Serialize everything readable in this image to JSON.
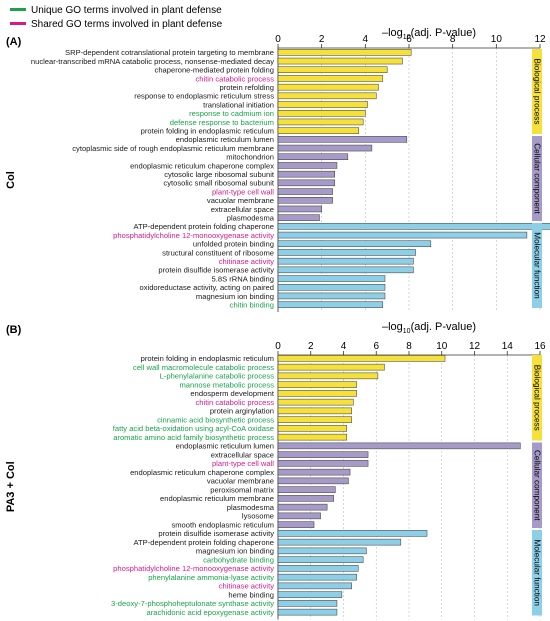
{
  "legend": {
    "items": [
      {
        "label": "Unique GO terms involved in plant defense",
        "color": "#1aa34a"
      },
      {
        "label": "Shared GO terms involved in plant defense",
        "color": "#d6198f"
      }
    ]
  },
  "colors": {
    "Biological process": "#f5e13a",
    "Cellular component": "#a69bc8",
    "Molecular function": "#8ecfe8",
    "unique": "#1aa34a",
    "shared": "#d6198f",
    "plain": "#1a1a1a"
  },
  "chart_data": [
    {
      "type": "bar",
      "orientation": "horizontal",
      "panel_label": "(A)",
      "group_label": "Col",
      "xlabel": "–log10(adj. P-value)",
      "xlim": [
        0,
        12
      ],
      "xticks": [
        0,
        2,
        4,
        6,
        8,
        10,
        12
      ],
      "grid": true,
      "categories": [
        {
          "section": "Biological process",
          "terms": [
            {
              "term": "SRP-dependent cotranslational protein targeting to membrane",
              "value": 6.1,
              "mark": "plain"
            },
            {
              "term": "nuclear-transcribed mRNA catabolic process, nonsense-mediated decay",
              "value": 5.7,
              "mark": "plain"
            },
            {
              "term": "chaperone-mediated protein folding",
              "value": 5.0,
              "mark": "plain"
            },
            {
              "term": "chitin catabolic process",
              "value": 4.8,
              "mark": "shared"
            },
            {
              "term": "protein refolding",
              "value": 4.6,
              "mark": "plain"
            },
            {
              "term": "response to endoplasmic reticulum stress",
              "value": 4.5,
              "mark": "plain"
            },
            {
              "term": "translational initiation",
              "value": 4.1,
              "mark": "plain"
            },
            {
              "term": "response to cadmium ion",
              "value": 4.0,
              "mark": "unique"
            },
            {
              "term": "defense response to bacterium",
              "value": 3.9,
              "mark": "unique"
            },
            {
              "term": "protein folding in endoplasmic reticulum",
              "value": 3.7,
              "mark": "plain"
            }
          ]
        },
        {
          "section": "Cellular component",
          "terms": [
            {
              "term": "endoplasmic reticulum lumen",
              "value": 5.9,
              "mark": "plain"
            },
            {
              "term": "cytoplasmic side of rough endoplasmic reticulum membrane",
              "value": 4.3,
              "mark": "plain"
            },
            {
              "term": "mitochondrion",
              "value": 3.2,
              "mark": "plain"
            },
            {
              "term": "endoplasmic reticulum chaperone complex",
              "value": 2.7,
              "mark": "plain"
            },
            {
              "term": "cytosolic large ribosomal subunit",
              "value": 2.6,
              "mark": "plain"
            },
            {
              "term": "cytosolic small ribosomal subunit",
              "value": 2.6,
              "mark": "plain"
            },
            {
              "term": "plant-type cell wall",
              "value": 2.5,
              "mark": "shared"
            },
            {
              "term": "vacuolar membrane",
              "value": 2.5,
              "mark": "plain"
            },
            {
              "term": "extracellular space",
              "value": 2.0,
              "mark": "plain"
            },
            {
              "term": "plasmodesma",
              "value": 1.9,
              "mark": "plain"
            }
          ]
        },
        {
          "section": "Molecular function",
          "terms": [
            {
              "term": "ATP-dependent protein folding chaperone",
              "value": 13.5,
              "mark": "plain"
            },
            {
              "term": "phosphatidylcholine 12-monooxygenase activity",
              "value": 11.4,
              "mark": "shared"
            },
            {
              "term": "unfolded protein binding",
              "value": 7.0,
              "mark": "plain"
            },
            {
              "term": "structural constituent of ribosome",
              "value": 6.3,
              "mark": "plain"
            },
            {
              "term": "chitinase activity",
              "value": 6.2,
              "mark": "shared"
            },
            {
              "term": "protein disulfide isomerase activity",
              "value": 6.2,
              "mark": "plain"
            },
            {
              "term": "5.8S rRNA binding",
              "value": 4.9,
              "mark": "plain"
            },
            {
              "term": "oxidoreductase activity, acting on paired",
              "value": 4.9,
              "mark": "plain"
            },
            {
              "term": "magnesium ion binding",
              "value": 4.9,
              "mark": "plain"
            },
            {
              "term": "chitin binding",
              "value": 4.8,
              "mark": "unique"
            }
          ]
        }
      ]
    },
    {
      "type": "bar",
      "orientation": "horizontal",
      "panel_label": "(B)",
      "group_label": "PA3 + Col",
      "xlabel": "–log10(adj. P-value)",
      "xlim": [
        0,
        16
      ],
      "xticks": [
        0,
        2,
        4,
        6,
        8,
        10,
        12,
        14,
        16
      ],
      "grid": true,
      "categories": [
        {
          "section": "Biological process",
          "terms": [
            {
              "term": "protein folding in endoplasmic reticulum",
              "value": 10.2,
              "mark": "plain"
            },
            {
              "term": "cell wall macromolecule catabolic process",
              "value": 6.5,
              "mark": "unique"
            },
            {
              "term": "L-phenylalanine catabolic process",
              "value": 6.1,
              "mark": "unique"
            },
            {
              "term": "mannose metabolic process",
              "value": 4.8,
              "mark": "unique"
            },
            {
              "term": "endosperm development",
              "value": 4.8,
              "mark": "plain"
            },
            {
              "term": "chitin catabolic process",
              "value": 4.6,
              "mark": "shared"
            },
            {
              "term": "protein arginylation",
              "value": 4.5,
              "mark": "plain"
            },
            {
              "term": "cinnamic acid biosynthetic process",
              "value": 4.5,
              "mark": "unique"
            },
            {
              "term": "fatty acid beta-oxidation using acyl-CoA oxidase",
              "value": 4.2,
              "mark": "unique"
            },
            {
              "term": "aromatic amino acid family biosynthetic process",
              "value": 4.2,
              "mark": "unique"
            }
          ]
        },
        {
          "section": "Cellular component",
          "terms": [
            {
              "term": "endoplasmic reticulum lumen",
              "value": 14.8,
              "mark": "plain"
            },
            {
              "term": "extracellular space",
              "value": 5.5,
              "mark": "plain"
            },
            {
              "term": "plant-type cell wall",
              "value": 5.5,
              "mark": "shared"
            },
            {
              "term": "endoplasmic reticulum chaperone complex",
              "value": 4.4,
              "mark": "plain"
            },
            {
              "term": "vacuolar membrane",
              "value": 4.3,
              "mark": "plain"
            },
            {
              "term": "peroxisomal matrix",
              "value": 3.5,
              "mark": "plain"
            },
            {
              "term": "endoplasmic reticulum membrane",
              "value": 3.4,
              "mark": "plain"
            },
            {
              "term": "plasmodesma",
              "value": 3.0,
              "mark": "plain"
            },
            {
              "term": "lysosome",
              "value": 2.6,
              "mark": "plain"
            },
            {
              "term": "smooth endoplasmic reticulum",
              "value": 2.2,
              "mark": "plain"
            }
          ]
        },
        {
          "section": "Molecular function",
          "terms": [
            {
              "term": "protein disulfide isomerase activity",
              "value": 9.1,
              "mark": "plain"
            },
            {
              "term": "ATP-dependent protein folding chaperone",
              "value": 7.5,
              "mark": "plain"
            },
            {
              "term": "magnesium ion binding",
              "value": 5.4,
              "mark": "plain"
            },
            {
              "term": "carbohydrate binding",
              "value": 5.2,
              "mark": "unique"
            },
            {
              "term": "phosphatidylcholine 12-monooxygenase activity",
              "value": 4.9,
              "mark": "shared"
            },
            {
              "term": "phenylalanine ammonia-lyase activity",
              "value": 4.8,
              "mark": "unique"
            },
            {
              "term": "chitinase activity",
              "value": 4.5,
              "mark": "shared"
            },
            {
              "term": "heme binding",
              "value": 3.9,
              "mark": "plain"
            },
            {
              "term": "3-deoxy-7-phosphoheptulonate synthase activity",
              "value": 3.6,
              "mark": "unique"
            },
            {
              "term": "arachidonic acid epoxygenase activity",
              "value": 3.6,
              "mark": "unique"
            }
          ]
        }
      ]
    }
  ]
}
